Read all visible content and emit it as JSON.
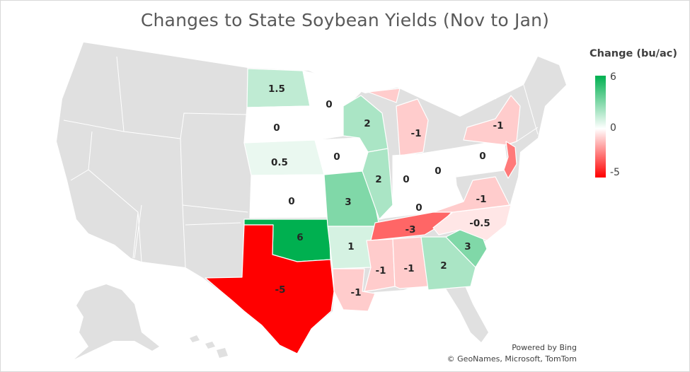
{
  "title": "Changes to State Soybean Yields (Nov to Jan)",
  "legend": {
    "title": "Change (bu/ac)",
    "max_label": "6",
    "mid_label": "0",
    "min_label": "-5",
    "max_color": "#00b050",
    "mid_color": "#ffffff",
    "min_color": "#ff0000",
    "nodata_color": "#e0e0e0"
  },
  "attribution": {
    "line1": "Powered by Bing",
    "line2": "© GeoNames, Microsoft, TomTom"
  },
  "chart_data": {
    "type": "choropleth",
    "region": "United States",
    "value_unit": "bu/ac",
    "color_scale": {
      "min": -5,
      "mid": 0,
      "max": 6
    },
    "states": [
      {
        "state": "North Dakota",
        "value": 1.5,
        "label": "1.5"
      },
      {
        "state": "Minnesota",
        "value": 0,
        "label": "0"
      },
      {
        "state": "South Dakota",
        "value": 0,
        "label": "0"
      },
      {
        "state": "Nebraska",
        "value": 0.5,
        "label": "0.5"
      },
      {
        "state": "Kansas",
        "value": 0,
        "label": "0"
      },
      {
        "state": "Oklahoma",
        "value": 6,
        "label": "6"
      },
      {
        "state": "Texas",
        "value": -5,
        "label": "-5"
      },
      {
        "state": "Iowa",
        "value": 0,
        "label": "0"
      },
      {
        "state": "Missouri",
        "value": 3,
        "label": "3"
      },
      {
        "state": "Arkansas",
        "value": 1,
        "label": "1"
      },
      {
        "state": "Louisiana",
        "value": -1,
        "label": "-1"
      },
      {
        "state": "Wisconsin",
        "value": 2,
        "label": "2"
      },
      {
        "state": "Illinois",
        "value": 2,
        "label": "2"
      },
      {
        "state": "Michigan",
        "value": -1,
        "label": "-1"
      },
      {
        "state": "Indiana",
        "value": 0,
        "label": "0"
      },
      {
        "state": "Ohio",
        "value": 0,
        "label": "0"
      },
      {
        "state": "Kentucky",
        "value": 0,
        "label": "0"
      },
      {
        "state": "Tennessee",
        "value": -3,
        "label": "-3"
      },
      {
        "state": "Mississippi",
        "value": -1,
        "label": "-1"
      },
      {
        "state": "Alabama",
        "value": -1,
        "label": "-1"
      },
      {
        "state": "Georgia",
        "value": 2,
        "label": "2"
      },
      {
        "state": "South Carolina",
        "value": 3,
        "label": "3"
      },
      {
        "state": "North Carolina",
        "value": -0.5,
        "label": "-0.5"
      },
      {
        "state": "Virginia",
        "value": -1,
        "label": "-1"
      },
      {
        "state": "Pennsylvania",
        "value": 0,
        "label": "0"
      },
      {
        "state": "New York",
        "value": -1,
        "label": "-1"
      },
      {
        "state": "New Jersey",
        "value": null,
        "label": ""
      }
    ]
  }
}
